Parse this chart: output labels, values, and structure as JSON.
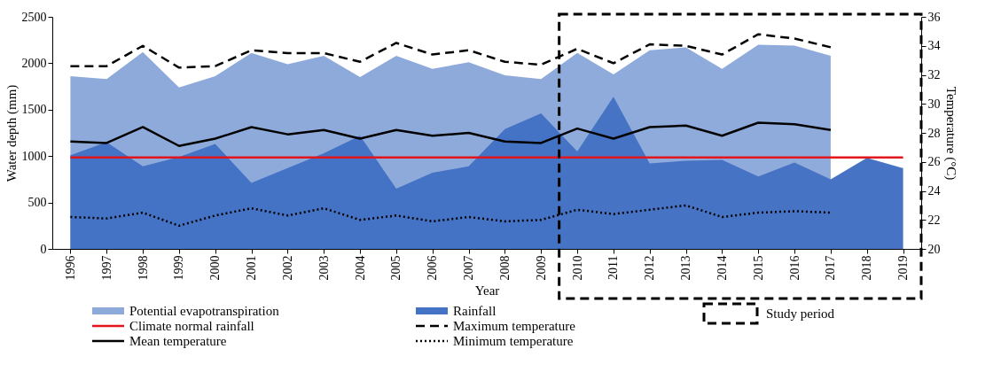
{
  "chart_data": {
    "type": "area",
    "categories": [
      "1996",
      "1997",
      "1998",
      "1999",
      "2000",
      "2001",
      "2002",
      "2003",
      "2004",
      "2005",
      "2006",
      "2007",
      "2008",
      "2009",
      "2010",
      "2011",
      "2012",
      "2013",
      "2014",
      "2015",
      "2016",
      "2017",
      "2018",
      "2019"
    ],
    "xlabel": "Year",
    "ylabel": "Water depth (mm)",
    "y2label": "Temperature (°C)",
    "ylim": [
      0,
      2500
    ],
    "yticks": [
      0,
      500,
      1000,
      1500,
      2000,
      2500
    ],
    "y2lim": [
      20,
      36
    ],
    "y2ticks": [
      20,
      22,
      24,
      26,
      28,
      30,
      32,
      34,
      36
    ],
    "grid": false,
    "legend": "bottom",
    "series": [
      {
        "name": "Potential evapotranspiration",
        "color": "#8eaadb",
        "values": [
          1860,
          1830,
          2120,
          1740,
          1860,
          2110,
          1990,
          2080,
          1850,
          2080,
          1940,
          2010,
          1870,
          1830,
          2110,
          1880,
          2140,
          2170,
          1940,
          2200,
          2190,
          2080,
          null,
          null
        ]
      },
      {
        "name": "Rainfall",
        "color": "#4472c4",
        "values": [
          1010,
          1150,
          890,
          990,
          1130,
          710,
          870,
          1030,
          1220,
          650,
          820,
          890,
          1290,
          1460,
          1050,
          1640,
          920,
          950,
          960,
          780,
          930,
          750,
          980,
          870
        ]
      },
      {
        "name": "Maximum temperature",
        "type": "line",
        "axis": "y2",
        "color": "#000000",
        "line_style": "dashed",
        "values": [
          32.6,
          32.6,
          34.0,
          32.5,
          32.6,
          33.7,
          33.5,
          33.5,
          32.9,
          34.2,
          33.4,
          33.7,
          32.9,
          32.7,
          33.8,
          32.8,
          34.1,
          34.0,
          33.4,
          34.8,
          34.5,
          33.9,
          null,
          null
        ]
      },
      {
        "name": "Mean temperature",
        "type": "line",
        "axis": "y2",
        "color": "#000000",
        "line_style": "solid",
        "values": [
          27.4,
          27.3,
          28.4,
          27.1,
          27.6,
          28.4,
          27.9,
          28.2,
          27.6,
          28.2,
          27.8,
          28.0,
          27.4,
          27.3,
          28.3,
          27.6,
          28.4,
          28.5,
          27.8,
          28.7,
          28.6,
          28.2,
          null,
          null
        ]
      },
      {
        "name": "Minimum temperature",
        "type": "line",
        "axis": "y2",
        "color": "#000000",
        "line_style": "dotted",
        "values": [
          22.2,
          22.1,
          22.5,
          21.6,
          22.3,
          22.8,
          22.3,
          22.8,
          22.0,
          22.3,
          21.9,
          22.2,
          21.9,
          22.0,
          22.7,
          22.4,
          22.7,
          23.0,
          22.2,
          22.5,
          22.6,
          22.5,
          null,
          null
        ]
      }
    ],
    "ref_lines": [
      {
        "axis": "y",
        "value": 985,
        "label": "Climate normal rainfall",
        "color": "#e3151c"
      }
    ],
    "bands": [
      {
        "axis": "x",
        "from": "2010",
        "to": "2019",
        "label": "Study period"
      }
    ]
  }
}
